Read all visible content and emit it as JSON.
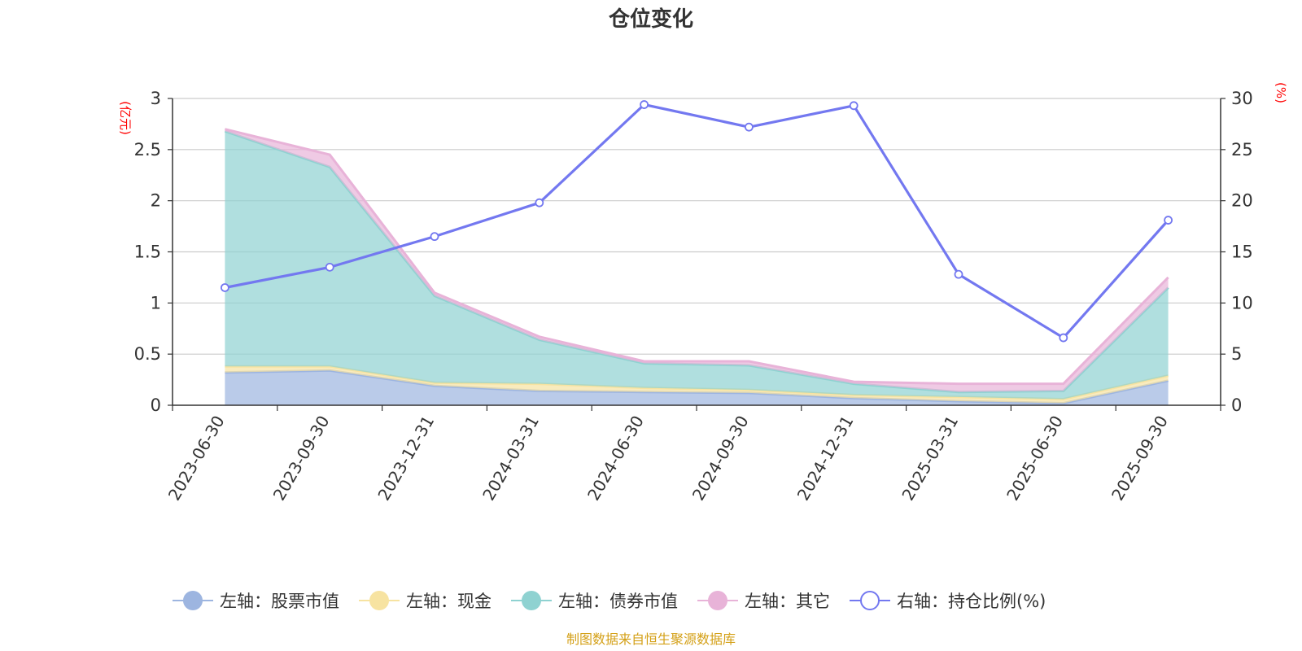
{
  "chart_data": {
    "type": "area",
    "title": "仓位变化",
    "left_unit": "(亿元)",
    "right_unit": "(%)",
    "categories": [
      "2023-06-30",
      "2023-09-30",
      "2023-12-31",
      "2024-03-31",
      "2024-06-30",
      "2024-09-30",
      "2024-12-31",
      "2025-03-31",
      "2025-06-30",
      "2025-09-30"
    ],
    "left_axis": {
      "min": 0,
      "max": 3,
      "ticks": [
        0,
        0.5,
        1,
        1.5,
        2,
        2.5,
        3
      ],
      "tick_labels": [
        "0",
        "0.5",
        "1",
        "1.5",
        "2",
        "2.5",
        "3"
      ]
    },
    "right_axis": {
      "min": 0,
      "max": 30,
      "ticks": [
        0,
        5,
        10,
        15,
        20,
        25,
        30
      ],
      "tick_labels": [
        "0",
        "5",
        "10",
        "15",
        "20",
        "25",
        "30"
      ]
    },
    "stacked_series": [
      {
        "name": "左轴：股票市值",
        "color": "#9db5e0",
        "values": [
          0.32,
          0.34,
          0.19,
          0.14,
          0.13,
          0.12,
          0.07,
          0.04,
          0.02,
          0.24
        ]
      },
      {
        "name": "左轴：现金",
        "color": "#f7e3a1",
        "values": [
          0.06,
          0.04,
          0.03,
          0.07,
          0.04,
          0.03,
          0.03,
          0.04,
          0.04,
          0.05
        ]
      },
      {
        "name": "左轴：债券市值",
        "color": "#8fd2d1",
        "values": [
          2.3,
          1.95,
          0.85,
          0.43,
          0.24,
          0.24,
          0.11,
          0.05,
          0.08,
          0.86
        ]
      },
      {
        "name": "左轴：其它",
        "color": "#e8b3d8",
        "values": [
          0.02,
          0.12,
          0.03,
          0.03,
          0.02,
          0.04,
          0.02,
          0.08,
          0.07,
          0.1
        ]
      }
    ],
    "line_series": {
      "name": "右轴：持仓比例(%)",
      "color": "#7378f0",
      "values": [
        11.5,
        13.5,
        16.5,
        19.8,
        29.4,
        27.2,
        29.3,
        12.8,
        6.6,
        18.1
      ]
    },
    "source": "制图数据来自恒生聚源数据库"
  }
}
